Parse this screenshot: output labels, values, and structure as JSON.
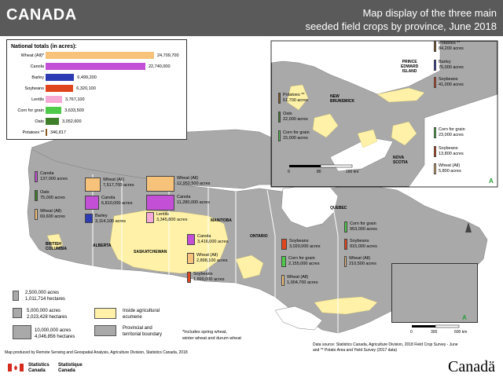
{
  "header": {
    "country": "CANADA",
    "subtitle_line1": "Map display of the three main",
    "subtitle_line2": "seeded field crops by province, June 2018"
  },
  "national_totals": {
    "title": "National totals (in acres):",
    "items": [
      {
        "label": "Wheat (All)*",
        "value": "24,709,700",
        "acres": 24709700,
        "color": "#f7c27a"
      },
      {
        "label": "Canola",
        "value": "22,740,000",
        "acres": 22740000,
        "color": "#c34fd6"
      },
      {
        "label": "Barley",
        "value": "6,499,200",
        "acres": 6499200,
        "color": "#2d3bb5"
      },
      {
        "label": "Soybeans",
        "value": "6,320,100",
        "acres": 6320100,
        "color": "#e0461e"
      },
      {
        "label": "Lentils",
        "value": "3,767,100",
        "acres": 3767100,
        "color": "#f7a9d6"
      },
      {
        "label": "Corn for grain",
        "value": "3,633,500",
        "acres": 3633500,
        "color": "#4fc94a"
      },
      {
        "label": "Oats",
        "value": "3,052,600",
        "acres": 3052600,
        "color": "#3f7f2a"
      },
      {
        "label": "Potatoes **",
        "value": "346,817",
        "acres": 346817,
        "color": "#8a5a1e"
      }
    ]
  },
  "provinces": {
    "bc": "BRITISH\nCOLUMBIA",
    "ab": "ALBERTA",
    "sk": "SASKATCHEWAN",
    "mb": "MANITOBA",
    "on": "ONTARIO",
    "qc": "QUEBEC",
    "nb": "NEW\nBRUNSWICK",
    "pe": "PRINCE\nEDWARD\nISLAND",
    "ns": "NOVA\nSCOTIA"
  },
  "annotations": {
    "bc_canola": "Canola\n137,000 acres",
    "bc_oats": "Oats\n75,000 acres",
    "bc_wheat": "Wheat (All)\n69,600 acres",
    "ab_wheat": "Wheat (All)\n7,517,700 acres",
    "ab_canola": "Canola\n6,810,000 acres",
    "ab_barley": "Barley\n3,114,100 acres",
    "sk_wheat": "Wheat (All)\n12,952,500 acres",
    "sk_canola": "Canola\n11,280,000 acres",
    "sk_lentils": "Lentils\n3,345,800 acres",
    "mb_canola": "Canola\n3,416,000 acres",
    "mb_wheat": "Wheat (All)\n2,898,100 acres",
    "mb_soy": "Soybeans\n1,890,000 acres",
    "on_soy": "Soybeans\n3,020,000 acres",
    "on_corn": "Corn for grain\n2,155,000 acres",
    "on_wheat": "Wheat (All)\n1,004,700 acres",
    "qc_corn": "Corn for grain\n953,000 acres",
    "qc_soy": "Soybeans\n915,000 acres",
    "qc_wheat": "Wheat (All)\n210,500 acres",
    "pe_potatoes": "Potatoes **\n84,200 acres",
    "pe_barley": "Barley\n75,000 acres",
    "pe_soy": "Soybeans\n41,000 acres",
    "nb_potatoes": "Potatoes **\n51,700 acres",
    "nb_oats": "Oats\n22,000 acres",
    "nb_corn": "Corn for grain\n15,000 acres",
    "ns_corn": "Corn for grain\n23,000 acres",
    "ns_soy": "Soybeans\n13,800 acres",
    "ns_wheat": "Wheat (All)\n5,800 acres"
  },
  "legend": {
    "size1": "2,500,000 acres\n1,011,714 hectares",
    "size2": "5,000,000 acres\n2,023,428 hectares",
    "size3": "10,000,000 acres\n4,046,856 hectares",
    "ecumene": "Inside agricultural\necumene",
    "boundary": "Provincial and\nterritorial boundary",
    "footnote": "*Includes spring wheat,\nwinter wheat and durum wheat"
  },
  "scale": {
    "inset_0": "0",
    "inset_80": "80",
    "inset_160": "160 km",
    "main_0": "0",
    "main_300": "300",
    "main_600": "600 km",
    "inset_north": "A",
    "main_north": "A"
  },
  "footer": {
    "credit": "Map produced by Remote Sensing and Geospatial Analysis, Agriculture Division, Statistics Canada, 2018",
    "source": "Data source: Statistics Canada, Agriculture Division, 2018 Field Crop Survey - June\nand ** Potato Area and Yield Survey (2017 data)",
    "statcan_en": "Statistics\nCanada",
    "statcan_fr": "Statistique\nCanada",
    "wordmark": "Canadä"
  },
  "colors": {
    "land": "#a9a9a9",
    "water": "#ffffff",
    "ecumene": "#fff2a8",
    "header": "#5a5a5a",
    "flag_red": "#d52b1e"
  }
}
